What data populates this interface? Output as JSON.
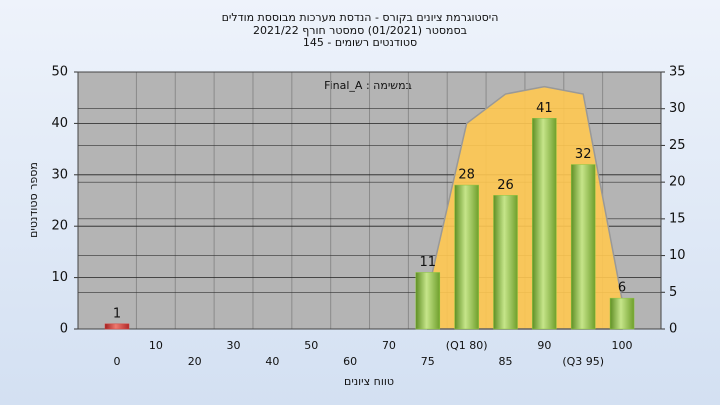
{
  "chart_data": {
    "type": "bar",
    "title": "היסטוגרמת ציונים בקורס - הנדסת מערכות מבוססת מודלים",
    "subtitle": [
      "בסמסטר (01/2021) סמסטר חורף 2021/22",
      "סטודנטים רשומים - 145"
    ],
    "annotation": "במשימה : Final_A",
    "x_label": "טווח ציונים",
    "y_label": "מספר סטודנטים",
    "categories": [
      "0",
      "10",
      "20",
      "30",
      "40",
      "50",
      "60",
      "70",
      "75",
      "(Q1 80)",
      "85",
      "90",
      "(Q3 95)",
      "100"
    ],
    "values": [
      1,
      0,
      0,
      0,
      0,
      0,
      0,
      0,
      11,
      28,
      26,
      41,
      32,
      6
    ],
    "colors": [
      "#d9403a",
      "#8cc63f",
      "#8cc63f",
      "#8cc63f",
      "#8cc63f",
      "#8cc63f",
      "#8cc63f",
      "#8cc63f",
      "#8cc63f",
      "#8cc63f",
      "#8cc63f",
      "#8cc63f",
      "#8cc63f",
      "#8cc63f"
    ],
    "area": {
      "values": [
        null,
        null,
        null,
        null,
        null,
        null,
        null,
        null,
        5,
        28,
        32,
        33,
        32,
        4
      ],
      "color": "#ffc851",
      "axis": "y2"
    },
    "ylim": [
      0,
      50
    ],
    "yticks": [
      0,
      10,
      20,
      30,
      40,
      50
    ],
    "y2lim": [
      0,
      35
    ],
    "y2ticks": [
      0,
      5,
      10,
      15,
      20,
      25,
      30,
      35
    ],
    "grid": true
  }
}
